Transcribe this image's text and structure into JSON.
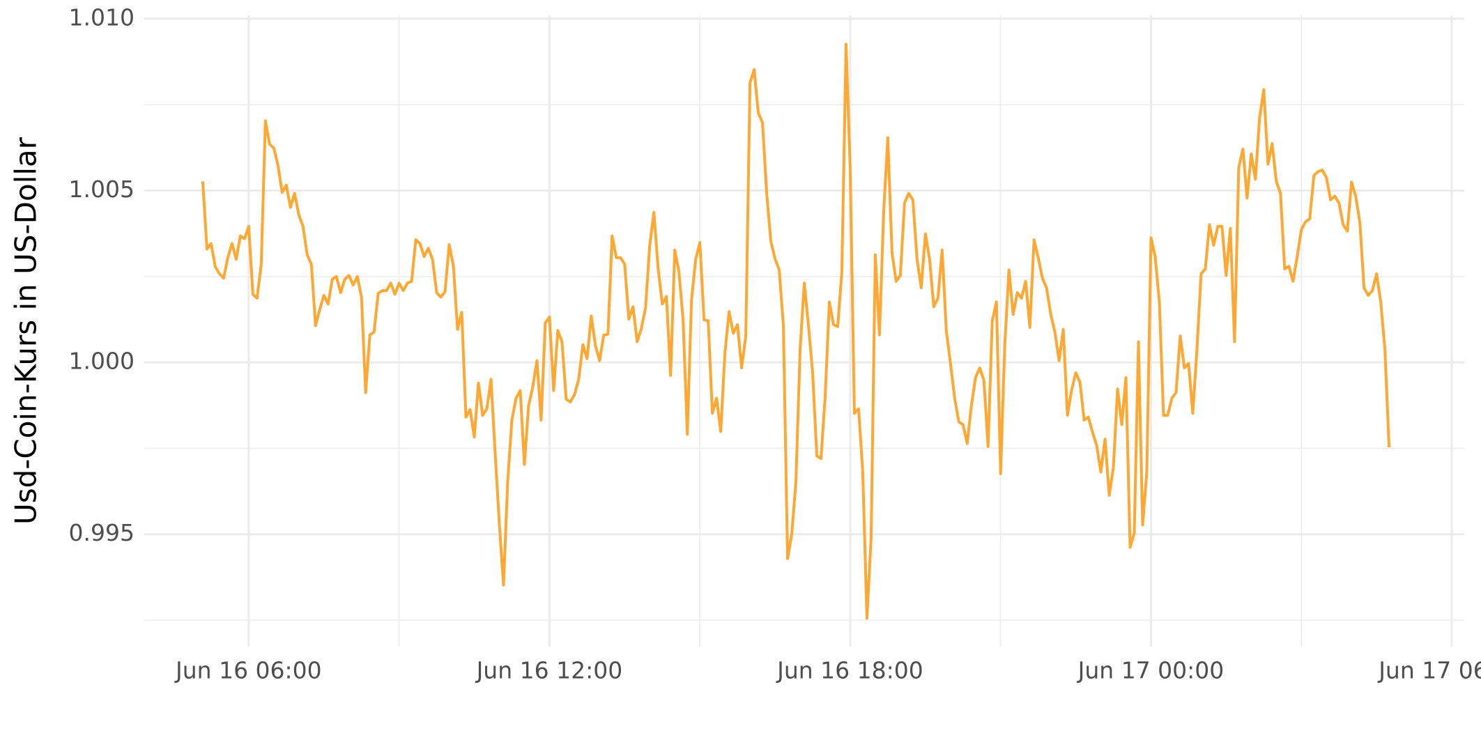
{
  "chart_data": {
    "type": "line",
    "y_label": "Usd-Coin-Kurs in US-Dollar",
    "color": "#ffa733",
    "grid": true,
    "xlim": [
      "Jun 16 03:55",
      "Jun 17 06:15"
    ],
    "xticks": [
      "Jun 16 06:00",
      "Jun 16 12:00",
      "Jun 16 18:00",
      "Jun 17 00:00",
      "Jun 17 06:00"
    ],
    "ylim": [
      0.99173,
      1.0101
    ],
    "yticks": [
      0.995,
      {
        "value": 1,
        "label": "1.000"
      },
      {
        "value": 1.005,
        "label": "1.005"
      },
      {
        "value": 1.01,
        "label": "1.010"
      }
    ],
    "x": [
      "Jun 16 05:05",
      "Jun 16 05:10",
      "Jun 16 05:15",
      "Jun 16 05:20",
      "Jun 16 05:25",
      "Jun 16 05:30",
      "Jun 16 05:35",
      "Jun 16 05:40",
      "Jun 16 05:45",
      "Jun 16 05:50",
      "Jun 16 05:55",
      "Jun 16 06:00",
      "Jun 16 06:05",
      "Jun 16 06:10",
      "Jun 16 06:15",
      "Jun 16 06:20",
      "Jun 16 06:25",
      "Jun 16 06:30",
      "Jun 16 06:35",
      "Jun 16 06:40",
      "Jun 16 06:45",
      "Jun 16 06:50",
      "Jun 16 06:55",
      "Jun 16 07:00",
      "Jun 16 07:05",
      "Jun 16 07:10",
      "Jun 16 07:15",
      "Jun 16 07:20",
      "Jun 16 07:25",
      "Jun 16 07:30",
      "Jun 16 07:35",
      "Jun 16 07:40",
      "Jun 16 07:45",
      "Jun 16 07:50",
      "Jun 16 07:55",
      "Jun 16 08:00",
      "Jun 16 08:05",
      "Jun 16 08:10",
      "Jun 16 08:15",
      "Jun 16 08:20",
      "Jun 16 08:25",
      "Jun 16 08:30",
      "Jun 16 08:35",
      "Jun 16 08:40",
      "Jun 16 08:45",
      "Jun 16 08:50",
      "Jun 16 08:55",
      "Jun 16 09:00",
      "Jun 16 09:05",
      "Jun 16 09:10",
      "Jun 16 09:15",
      "Jun 16 09:20",
      "Jun 16 09:25",
      "Jun 16 09:30",
      "Jun 16 09:35",
      "Jun 16 09:40",
      "Jun 16 09:45",
      "Jun 16 09:50",
      "Jun 16 09:55",
      "Jun 16 10:00",
      "Jun 16 10:05",
      "Jun 16 10:10",
      "Jun 16 10:15",
      "Jun 16 10:20",
      "Jun 16 10:25",
      "Jun 16 10:30",
      "Jun 16 10:35",
      "Jun 16 10:40",
      "Jun 16 10:45",
      "Jun 16 10:50",
      "Jun 16 10:55",
      "Jun 16 11:00",
      "Jun 16 11:05",
      "Jun 16 11:10",
      "Jun 16 11:15",
      "Jun 16 11:20",
      "Jun 16 11:25",
      "Jun 16 11:30",
      "Jun 16 11:35",
      "Jun 16 11:40",
      "Jun 16 11:45",
      "Jun 16 11:50",
      "Jun 16 11:55",
      "Jun 16 12:00",
      "Jun 16 12:05",
      "Jun 16 12:10",
      "Jun 16 12:15",
      "Jun 16 12:20",
      "Jun 16 12:25",
      "Jun 16 12:30",
      "Jun 16 12:35",
      "Jun 16 12:40",
      "Jun 16 12:45",
      "Jun 16 12:50",
      "Jun 16 12:55",
      "Jun 16 13:00",
      "Jun 16 13:05",
      "Jun 16 13:10",
      "Jun 16 13:15",
      "Jun 16 13:20",
      "Jun 16 13:25",
      "Jun 16 13:30",
      "Jun 16 13:35",
      "Jun 16 13:40",
      "Jun 16 13:45",
      "Jun 16 13:50",
      "Jun 16 13:55",
      "Jun 16 14:00",
      "Jun 16 14:05",
      "Jun 16 14:10",
      "Jun 16 14:15",
      "Jun 16 14:20",
      "Jun 16 14:25",
      "Jun 16 14:30",
      "Jun 16 14:35",
      "Jun 16 14:40",
      "Jun 16 14:45",
      "Jun 16 14:50",
      "Jun 16 14:55",
      "Jun 16 15:00",
      "Jun 16 15:05",
      "Jun 16 15:10",
      "Jun 16 15:15",
      "Jun 16 15:20",
      "Jun 16 15:25",
      "Jun 16 15:30",
      "Jun 16 15:35",
      "Jun 16 15:40",
      "Jun 16 15:45",
      "Jun 16 15:50",
      "Jun 16 15:55",
      "Jun 16 16:00",
      "Jun 16 16:05",
      "Jun 16 16:10",
      "Jun 16 16:15",
      "Jun 16 16:20",
      "Jun 16 16:25",
      "Jun 16 16:30",
      "Jun 16 16:35",
      "Jun 16 16:40",
      "Jun 16 16:45",
      "Jun 16 16:50",
      "Jun 16 16:55",
      "Jun 16 17:00",
      "Jun 16 17:05",
      "Jun 16 17:10",
      "Jun 16 17:15",
      "Jun 16 17:20",
      "Jun 16 17:25",
      "Jun 16 17:30",
      "Jun 16 17:35",
      "Jun 16 17:40",
      "Jun 16 17:45",
      "Jun 16 17:50",
      "Jun 16 17:55",
      "Jun 16 18:00",
      "Jun 16 18:05",
      "Jun 16 18:10",
      "Jun 16 18:15",
      "Jun 16 18:20",
      "Jun 16 18:25",
      "Jun 16 18:30",
      "Jun 16 18:35",
      "Jun 16 18:40",
      "Jun 16 18:45",
      "Jun 16 18:50",
      "Jun 16 18:55",
      "Jun 16 19:00",
      "Jun 16 19:05",
      "Jun 16 19:10",
      "Jun 16 19:15",
      "Jun 16 19:20",
      "Jun 16 19:25",
      "Jun 16 19:30",
      "Jun 16 19:35",
      "Jun 16 19:40",
      "Jun 16 19:45",
      "Jun 16 19:50",
      "Jun 16 19:55",
      "Jun 16 20:00",
      "Jun 16 20:05",
      "Jun 16 20:10",
      "Jun 16 20:15",
      "Jun 16 20:20",
      "Jun 16 20:25",
      "Jun 16 20:30",
      "Jun 16 20:35",
      "Jun 16 20:40",
      "Jun 16 20:45",
      "Jun 16 20:50",
      "Jun 16 20:55",
      "Jun 16 21:00",
      "Jun 16 21:05",
      "Jun 16 21:10",
      "Jun 16 21:15",
      "Jun 16 21:20",
      "Jun 16 21:25",
      "Jun 16 21:30",
      "Jun 16 21:35",
      "Jun 16 21:40",
      "Jun 16 21:45",
      "Jun 16 21:50",
      "Jun 16 21:55",
      "Jun 16 22:00",
      "Jun 16 22:05",
      "Jun 16 22:10",
      "Jun 16 22:15",
      "Jun 16 22:20",
      "Jun 16 22:25",
      "Jun 16 22:30",
      "Jun 16 22:35",
      "Jun 16 22:40",
      "Jun 16 22:45",
      "Jun 16 22:50",
      "Jun 16 22:55",
      "Jun 16 23:00",
      "Jun 16 23:05",
      "Jun 16 23:10",
      "Jun 16 23:15",
      "Jun 16 23:20",
      "Jun 16 23:25",
      "Jun 16 23:30",
      "Jun 16 23:35",
      "Jun 16 23:40",
      "Jun 16 23:45",
      "Jun 16 23:50",
      "Jun 16 23:55",
      "Jun 17 00:00",
      "Jun 17 00:05",
      "Jun 17 00:10",
      "Jun 17 00:15",
      "Jun 17 00:20",
      "Jun 17 00:25",
      "Jun 17 00:30",
      "Jun 17 00:35",
      "Jun 17 00:40",
      "Jun 17 00:45",
      "Jun 17 00:50",
      "Jun 17 00:55",
      "Jun 17 01:00",
      "Jun 17 01:05",
      "Jun 17 01:10",
      "Jun 17 01:15",
      "Jun 17 01:20",
      "Jun 17 01:25",
      "Jun 17 01:30",
      "Jun 17 01:35",
      "Jun 17 01:40",
      "Jun 17 01:45",
      "Jun 17 01:50",
      "Jun 17 01:55",
      "Jun 17 02:00",
      "Jun 17 02:05",
      "Jun 17 02:10",
      "Jun 17 02:15",
      "Jun 17 02:20",
      "Jun 17 02:25",
      "Jun 17 02:30",
      "Jun 17 02:35",
      "Jun 17 02:40",
      "Jun 17 02:45",
      "Jun 17 02:50",
      "Jun 17 02:55",
      "Jun 17 03:00",
      "Jun 17 03:05",
      "Jun 17 03:10",
      "Jun 17 03:15",
      "Jun 17 03:20",
      "Jun 17 03:25",
      "Jun 17 03:30",
      "Jun 17 03:35",
      "Jun 17 03:40",
      "Jun 17 03:45",
      "Jun 17 03:50",
      "Jun 17 03:55",
      "Jun 17 04:00",
      "Jun 17 04:05",
      "Jun 17 04:10",
      "Jun 17 04:15",
      "Jun 17 04:20",
      "Jun 17 04:25",
      "Jun 17 04:30",
      "Jun 17 04:35",
      "Jun 17 04:40",
      "Jun 17 04:45"
    ],
    "values": [
      1.00527,
      1.0033,
      1.00346,
      1.00278,
      1.00258,
      1.00245,
      1.00305,
      1.00346,
      1.003,
      1.00368,
      1.0036,
      1.00396,
      1.00198,
      1.00187,
      1.00286,
      1.00703,
      1.00635,
      1.00624,
      1.00574,
      1.00495,
      1.00516,
      1.00451,
      1.00492,
      1.00429,
      1.00396,
      1.00313,
      1.00286,
      1.00107,
      1.00154,
      1.00195,
      1.0017,
      1.00242,
      1.0025,
      1.00203,
      1.00242,
      1.00253,
      1.00225,
      1.0025,
      1.0019,
      0.99912,
      1.0008,
      1.00088,
      1.00201,
      1.00209,
      1.00209,
      1.00231,
      1.00198,
      1.00231,
      1.00209,
      1.00231,
      1.00236,
      1.00357,
      1.00346,
      1.00308,
      1.00332,
      1.003,
      1.00203,
      1.0019,
      1.00206,
      1.00343,
      1.0028,
      1.00096,
      1.00146,
      0.99841,
      0.99863,
      0.99783,
      0.9994,
      0.99846,
      0.99865,
      0.99951,
      0.99736,
      0.9953,
      0.99352,
      0.99654,
      0.99832,
      0.99896,
      0.99918,
      0.99703,
      0.99874,
      0.99929,
      1.00005,
      0.99832,
      1.00115,
      1.00132,
      0.99918,
      1.00093,
      1.0006,
      0.99893,
      0.99885,
      0.99907,
      0.99951,
      1.00052,
      1.00011,
      1.00135,
      1.00049,
      1.00005,
      1.0008,
      1.00082,
      1.00368,
      1.00305,
      1.00305,
      1.00286,
      1.00126,
      1.00162,
      1.0006,
      1.00099,
      1.00159,
      1.00341,
      1.00437,
      1.00275,
      1.0017,
      1.00192,
      0.99962,
      1.00327,
      1.00264,
      1.00121,
      0.99791,
      1.00181,
      1.003,
      1.00349,
      1.00124,
      1.00121,
      0.99852,
      0.99896,
      0.99799,
      1.00027,
      1.00148,
      1.00085,
      1.0011,
      0.99984,
      1.00077,
      1.00813,
      1.00852,
      1.00725,
      1.00698,
      1.00492,
      1.00352,
      1.00302,
      1.00269,
      1.00107,
      0.99429,
      0.995,
      0.99654,
      1.00038,
      1.00231,
      1.00107,
      0.9997,
      0.99728,
      0.9972,
      0.99901,
      1.00176,
      1.0011,
      1.00104,
      1.00264,
      1.00926,
      1.0056,
      0.99852,
      0.99865,
      0.99681,
      0.99255,
      0.99489,
      1.00313,
      1.0008,
      1.00437,
      1.00654,
      1.00319,
      1.00236,
      1.00253,
      1.00464,
      1.00492,
      1.00473,
      1.003,
      1.00217,
      1.00374,
      1.003,
      1.00162,
      1.00187,
      1.00327,
      1.00093,
      0.99997,
      0.99896,
      0.99827,
      0.99819,
      0.99764,
      0.99874,
      0.99956,
      0.99984,
      0.99948,
      0.99755,
      1.00121,
      1.00176,
      0.99676,
      1.00052,
      1.00269,
      1.0014,
      1.00203,
      1.00187,
      1.00236,
      1.00102,
      1.00357,
      1.00305,
      1.00245,
      1.00217,
      1.0014,
      1.00088,
      1.00005,
      1.00096,
      0.99846,
      0.9992,
      0.9997,
      0.99942,
      0.99832,
      0.99841,
      0.99797,
      0.99758,
      0.99681,
      0.99777,
      0.99613,
      0.99695,
      0.99923,
      0.99819,
      0.99956,
      0.99462,
      0.99503,
      1.0006,
      0.99527,
      0.99681,
      1.00363,
      1.00308,
      1.00176,
      0.99846,
      0.99846,
      0.99896,
      0.99912,
      1.00077,
      0.99984,
      0.99997,
      0.99852,
      1.00038,
      1.00258,
      1.00272,
      1.00401,
      1.00341,
      1.00396,
      1.00396,
      1.00253,
      1.0039,
      1.0006,
      1.00566,
      1.00621,
      1.00478,
      1.00607,
      1.00533,
      1.00712,
      1.00794,
      1.00577,
      1.00637,
      1.00527,
      1.00492,
      1.00272,
      1.0028,
      1.00236,
      1.00308,
      1.00387,
      1.00409,
      1.00418,
      1.00544,
      1.00555,
      1.0056,
      1.00538,
      1.00473,
      1.00484,
      1.00464,
      1.00401,
      1.00382,
      1.00525,
      1.00484,
      1.00407,
      1.00217,
      1.00195,
      1.00209,
      1.00258,
      1.00176,
      1.00038,
      0.99753
    ]
  }
}
